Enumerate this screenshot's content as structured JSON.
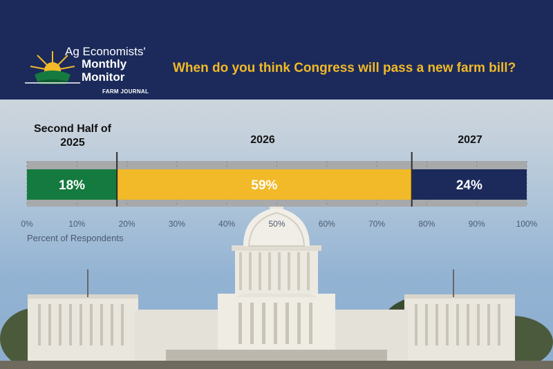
{
  "header": {
    "logo": {
      "line1": "Ag Economists'",
      "line2": "Monthly",
      "line3": "Monitor",
      "publisher": "FARM JOURNAL"
    },
    "question": "When do you think Congress will pass a new farm bill?"
  },
  "chart_data": {
    "type": "bar",
    "orientation": "horizontal-stacked",
    "title": "When do you think Congress will pass a new farm bill?",
    "xlabel": "Percent of Respondents",
    "xlim": [
      0,
      100
    ],
    "ticks": [
      "0%",
      "10%",
      "20%",
      "30%",
      "40%",
      "50%",
      "60%",
      "70%",
      "80%",
      "90%",
      "100%"
    ],
    "categories": [
      "Second Half of 2025",
      "2026",
      "2027"
    ],
    "series": [
      {
        "category": "Second Half of 2025",
        "value": 18,
        "label": "18%",
        "color": "#157a3f"
      },
      {
        "category": "2026",
        "value": 59,
        "label": "59%",
        "color": "#f2b928"
      },
      {
        "category": "2027",
        "value": 24,
        "label": "24%",
        "color": "#1b2a5a"
      }
    ],
    "category_labels": [
      {
        "line1": "Second Half of",
        "line2": "2025"
      },
      {
        "line1": "",
        "line2": "2026"
      },
      {
        "line1": "",
        "line2": "2027"
      }
    ],
    "grid": true,
    "legend": "none"
  },
  "colors": {
    "header_bg": "#1b2a5a",
    "accent": "#f2b928",
    "green": "#157a3f",
    "track": "#a7a9ab"
  }
}
